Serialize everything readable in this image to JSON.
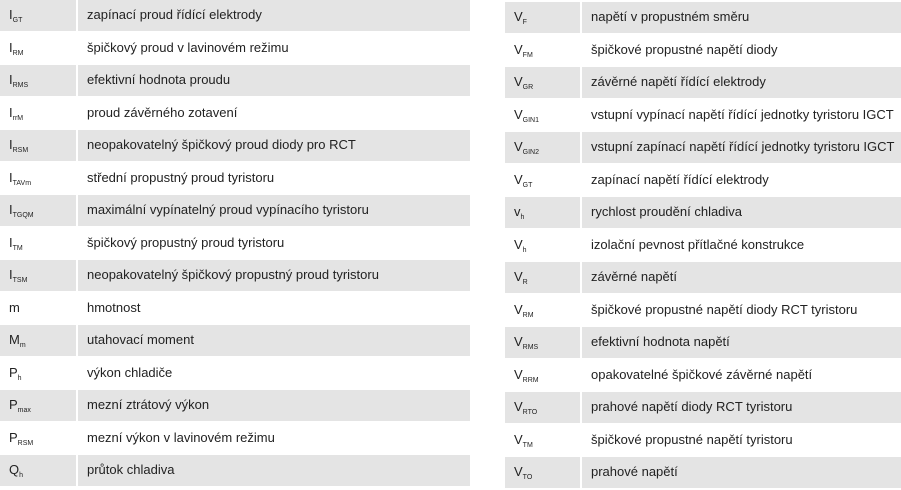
{
  "left_table": {
    "rows": [
      {
        "symbol": {
          "main": "I",
          "sub": "GT"
        },
        "description": "zapínací proud řídící elektrody"
      },
      {
        "symbol": {
          "main": "I",
          "sub": "RM"
        },
        "description": "špičkový proud v lavinovém režimu"
      },
      {
        "symbol": {
          "main": "I",
          "sub": "RMS"
        },
        "description": "efektivní hodnota proudu"
      },
      {
        "symbol": {
          "main": "I",
          "sub": "rrM"
        },
        "description": "proud závěrného zotavení"
      },
      {
        "symbol": {
          "main": "I",
          "sub": "RSM"
        },
        "description": "neopakovatelný špičkový proud diody pro RCT"
      },
      {
        "symbol": {
          "main": "I",
          "sub": "TAVm"
        },
        "description": "střední propustný proud tyristoru"
      },
      {
        "symbol": {
          "main": "I",
          "sub": "TGQM"
        },
        "description": "maximální vypínatelný proud vypínacího tyristoru"
      },
      {
        "symbol": {
          "main": "I",
          "sub": "TM"
        },
        "description": "špičkový propustný proud tyristoru"
      },
      {
        "symbol": {
          "main": "I",
          "sub": "TSM"
        },
        "description": "neopakovatelný špičkový propustný proud tyristoru"
      },
      {
        "symbol": {
          "main": "m"
        },
        "description": "hmotnost"
      },
      {
        "symbol": {
          "main": "M",
          "sub": "m"
        },
        "description": "utahovací moment"
      },
      {
        "symbol": {
          "main": "P",
          "sub": "h"
        },
        "description": "výkon chladiče"
      },
      {
        "symbol": {
          "main": "P",
          "sub": "max"
        },
        "description": "mezní ztrátový výkon"
      },
      {
        "symbol": {
          "main": "P",
          "sub": "RSM"
        },
        "description": "mezní výkon v lavinovém režimu"
      },
      {
        "symbol": {
          "main": "Q",
          "sub": "h"
        },
        "description": "průtok chladiva"
      }
    ]
  },
  "right_table": {
    "rows": [
      {
        "symbol": {
          "main": "V",
          "sub": "F"
        },
        "description": "napětí v propustném směru"
      },
      {
        "symbol": {
          "main": "V",
          "sub": "FM"
        },
        "description": "špičkové propustné napětí diody"
      },
      {
        "symbol": {
          "main": "V",
          "sub": "GR"
        },
        "description": "závěrné napětí řídící elektrody"
      },
      {
        "symbol": {
          "main": "V",
          "sub": "GIN1"
        },
        "description": "vstupní vypínací napětí řídící jednotky tyristoru IGCT"
      },
      {
        "symbol": {
          "main": "V",
          "sub": "GIN2"
        },
        "description": "vstupní zapínací napětí řídící jednotky tyristoru IGCT"
      },
      {
        "symbol": {
          "main": "V",
          "sub": "GT"
        },
        "description": "zapínací napětí řídící elektrody"
      },
      {
        "symbol": {
          "main": "v",
          "sub": "h"
        },
        "description": "rychlost proudění chladiva"
      },
      {
        "symbol": {
          "main": "V",
          "sub": "h"
        },
        "description": "izolační pevnost přítlačné konstrukce"
      },
      {
        "symbol": {
          "main": "V",
          "sub": "R"
        },
        "description": "závěrné napětí"
      },
      {
        "symbol": {
          "main": "V",
          "sub": "RM"
        },
        "description": "špičkové propustné napětí diody RCT tyristoru"
      },
      {
        "symbol": {
          "main": "V",
          "sub": "RMS"
        },
        "description": "efektivní hodnota napětí"
      },
      {
        "symbol": {
          "main": "V",
          "sub": "RRM"
        },
        "description": "opakovatelné špičkové závěrné napětí"
      },
      {
        "symbol": {
          "main": "V",
          "sub": "RTO"
        },
        "description": "prahové napětí diody RCT tyristoru"
      },
      {
        "symbol": {
          "main": "V",
          "sub": "TM"
        },
        "description": "špičkové propustné napětí tyristoru"
      },
      {
        "symbol": {
          "main": "V",
          "sub": "TO"
        },
        "description": "prahové napětí"
      }
    ]
  }
}
